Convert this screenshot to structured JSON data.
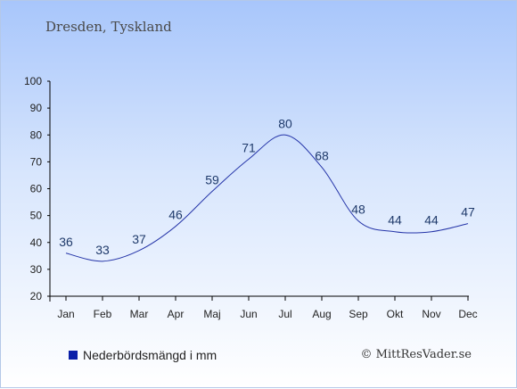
{
  "title": "Dresden, Tyskland",
  "legend": {
    "label": "Nederbördsmängd i mm",
    "color": "#0a1fa8"
  },
  "copyright": "© MittResVader.se",
  "chart_data": {
    "type": "line",
    "categories": [
      "Jan",
      "Feb",
      "Mar",
      "Apr",
      "Maj",
      "Jun",
      "Jul",
      "Aug",
      "Sep",
      "Okt",
      "Nov",
      "Dec"
    ],
    "series": [
      {
        "name": "Nederbördsmängd i mm",
        "values": [
          36,
          33,
          37,
          46,
          59,
          71,
          80,
          68,
          48,
          44,
          44,
          47
        ]
      }
    ],
    "ylim": [
      20,
      100
    ],
    "yticks": [
      20,
      30,
      40,
      50,
      60,
      70,
      80,
      90,
      100
    ],
    "line_color": "#2434a8",
    "grid": false,
    "legend_position": "bottom-left"
  }
}
